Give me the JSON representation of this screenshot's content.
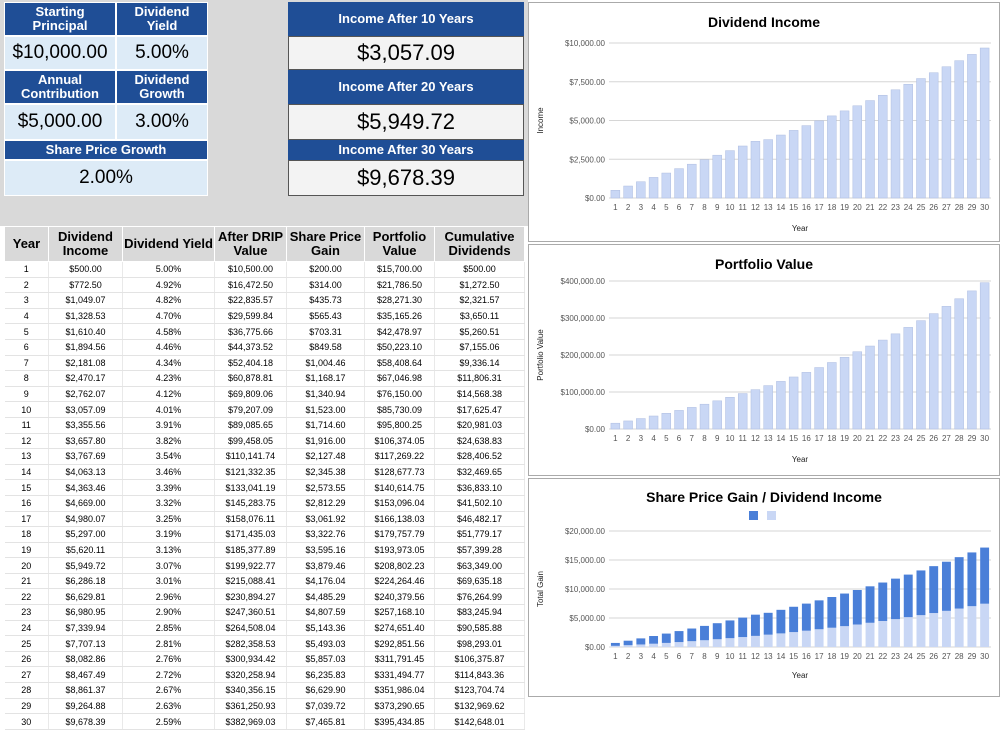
{
  "inputs": {
    "starting_principal_label": "Starting Principal",
    "starting_principal": "$10,000.00",
    "dividend_yield_label": "Dividend Yield",
    "dividend_yield": "5.00%",
    "annual_contribution_label": "Annual Contribution",
    "annual_contribution": "$5,000.00",
    "dividend_growth_label": "Dividend Growth",
    "dividend_growth": "3.00%",
    "share_price_growth_label": "Share Price Growth",
    "share_price_growth": "2.00%"
  },
  "outputs": {
    "income_10_label": "Income After 10 Years",
    "income_10": "$3,057.09",
    "income_20_label": "Income After 20 Years",
    "income_20": "$5,949.72",
    "income_30_label": "Income After 30 Years",
    "income_30": "$9,678.39"
  },
  "table": {
    "headers": [
      "Year",
      "Dividend Income",
      "Dividend Yield",
      "After DRIP Value",
      "Share Price Gain",
      "Portfolio Value",
      "Cumulative Dividends"
    ],
    "rows": [
      [
        "1",
        "$500.00",
        "5.00%",
        "$10,500.00",
        "$200.00",
        "$15,700.00",
        "$500.00"
      ],
      [
        "2",
        "$772.50",
        "4.92%",
        "$16,472.50",
        "$314.00",
        "$21,786.50",
        "$1,272.50"
      ],
      [
        "3",
        "$1,049.07",
        "4.82%",
        "$22,835.57",
        "$435.73",
        "$28,271.30",
        "$2,321.57"
      ],
      [
        "4",
        "$1,328.53",
        "4.70%",
        "$29,599.84",
        "$565.43",
        "$35,165.26",
        "$3,650.11"
      ],
      [
        "5",
        "$1,610.40",
        "4.58%",
        "$36,775.66",
        "$703.31",
        "$42,478.97",
        "$5,260.51"
      ],
      [
        "6",
        "$1,894.56",
        "4.46%",
        "$44,373.52",
        "$849.58",
        "$50,223.10",
        "$7,155.06"
      ],
      [
        "7",
        "$2,181.08",
        "4.34%",
        "$52,404.18",
        "$1,004.46",
        "$58,408.64",
        "$9,336.14"
      ],
      [
        "8",
        "$2,470.17",
        "4.23%",
        "$60,878.81",
        "$1,168.17",
        "$67,046.98",
        "$11,806.31"
      ],
      [
        "9",
        "$2,762.07",
        "4.12%",
        "$69,809.06",
        "$1,340.94",
        "$76,150.00",
        "$14,568.38"
      ],
      [
        "10",
        "$3,057.09",
        "4.01%",
        "$79,207.09",
        "$1,523.00",
        "$85,730.09",
        "$17,625.47"
      ],
      [
        "11",
        "$3,355.56",
        "3.91%",
        "$89,085.65",
        "$1,714.60",
        "$95,800.25",
        "$20,981.03"
      ],
      [
        "12",
        "$3,657.80",
        "3.82%",
        "$99,458.05",
        "$1,916.00",
        "$106,374.05",
        "$24,638.83"
      ],
      [
        "13",
        "$3,767.69",
        "3.54%",
        "$110,141.74",
        "$2,127.48",
        "$117,269.22",
        "$28,406.52"
      ],
      [
        "14",
        "$4,063.13",
        "3.46%",
        "$121,332.35",
        "$2,345.38",
        "$128,677.73",
        "$32,469.65"
      ],
      [
        "15",
        "$4,363.46",
        "3.39%",
        "$133,041.19",
        "$2,573.55",
        "$140,614.75",
        "$36,833.10"
      ],
      [
        "16",
        "$4,669.00",
        "3.32%",
        "$145,283.75",
        "$2,812.29",
        "$153,096.04",
        "$41,502.10"
      ],
      [
        "17",
        "$4,980.07",
        "3.25%",
        "$158,076.11",
        "$3,061.92",
        "$166,138.03",
        "$46,482.17"
      ],
      [
        "18",
        "$5,297.00",
        "3.19%",
        "$171,435.03",
        "$3,322.76",
        "$179,757.79",
        "$51,779.17"
      ],
      [
        "19",
        "$5,620.11",
        "3.13%",
        "$185,377.89",
        "$3,595.16",
        "$193,973.05",
        "$57,399.28"
      ],
      [
        "20",
        "$5,949.72",
        "3.07%",
        "$199,922.77",
        "$3,879.46",
        "$208,802.23",
        "$63,349.00"
      ],
      [
        "21",
        "$6,286.18",
        "3.01%",
        "$215,088.41",
        "$4,176.04",
        "$224,264.46",
        "$69,635.18"
      ],
      [
        "22",
        "$6,629.81",
        "2.96%",
        "$230,894.27",
        "$4,485.29",
        "$240,379.56",
        "$76,264.99"
      ],
      [
        "23",
        "$6,980.95",
        "2.90%",
        "$247,360.51",
        "$4,807.59",
        "$257,168.10",
        "$83,245.94"
      ],
      [
        "24",
        "$7,339.94",
        "2.85%",
        "$264,508.04",
        "$5,143.36",
        "$274,651.40",
        "$90,585.88"
      ],
      [
        "25",
        "$7,707.13",
        "2.81%",
        "$282,358.53",
        "$5,493.03",
        "$292,851.56",
        "$98,293.01"
      ],
      [
        "26",
        "$8,082.86",
        "2.76%",
        "$300,934.42",
        "$5,857.03",
        "$311,791.45",
        "$106,375.87"
      ],
      [
        "27",
        "$8,467.49",
        "2.72%",
        "$320,258.94",
        "$6,235.83",
        "$331,494.77",
        "$114,843.36"
      ],
      [
        "28",
        "$8,861.37",
        "2.67%",
        "$340,356.15",
        "$6,629.90",
        "$351,986.04",
        "$123,704.74"
      ],
      [
        "29",
        "$9,264.88",
        "2.63%",
        "$361,250.93",
        "$7,039.72",
        "$373,290.65",
        "$132,969.62"
      ],
      [
        "30",
        "$9,678.39",
        "2.59%",
        "$382,969.03",
        "$7,465.81",
        "$395,434.85",
        "$142,648.01"
      ]
    ]
  },
  "colors": {
    "header": "#1f4e96",
    "input_bg": "#ddebf7",
    "bar_light": "#c9d7f5",
    "bar_dark": "#4a7fd8"
  },
  "chart_data": [
    {
      "type": "bar",
      "title": "Dividend Income",
      "xlabel": "Year",
      "ylabel": "Income",
      "ylim": [
        0,
        10000
      ],
      "yticks": [
        "$0.00",
        "$2,500.00",
        "$5,000.00",
        "$7,500.00",
        "$10,000.00"
      ],
      "categories": [
        1,
        2,
        3,
        4,
        5,
        6,
        7,
        8,
        9,
        10,
        11,
        12,
        13,
        14,
        15,
        16,
        17,
        18,
        19,
        20,
        21,
        22,
        23,
        24,
        25,
        26,
        27,
        28,
        29,
        30
      ],
      "values": [
        500,
        772.5,
        1049.07,
        1328.53,
        1610.4,
        1894.56,
        2181.08,
        2470.17,
        2762.07,
        3057.09,
        3355.56,
        3657.8,
        3767.69,
        4063.13,
        4363.46,
        4669,
        4980.07,
        5297,
        5620.11,
        5949.72,
        6286.18,
        6629.81,
        6980.95,
        7339.94,
        7707.13,
        8082.86,
        8467.49,
        8861.37,
        9264.88,
        9678.39
      ]
    },
    {
      "type": "bar",
      "title": "Portfolio Value",
      "xlabel": "Year",
      "ylabel": "Portfolio Value",
      "ylim": [
        0,
        400000
      ],
      "yticks": [
        "$0.00",
        "$100,000.00",
        "$200,000.00",
        "$300,000.00",
        "$400,000.00"
      ],
      "categories": [
        1,
        2,
        3,
        4,
        5,
        6,
        7,
        8,
        9,
        10,
        11,
        12,
        13,
        14,
        15,
        16,
        17,
        18,
        19,
        20,
        21,
        22,
        23,
        24,
        25,
        26,
        27,
        28,
        29,
        30
      ],
      "values": [
        15700,
        21786.5,
        28271.3,
        35165.26,
        42478.97,
        50223.1,
        58408.64,
        67046.98,
        76150,
        85730.09,
        95800.25,
        106374.05,
        117269.22,
        128677.73,
        140614.75,
        153096.04,
        166138.03,
        179757.79,
        193973.05,
        208802.23,
        224264.46,
        240379.56,
        257168.1,
        274651.4,
        292851.56,
        311791.45,
        331494.77,
        351986.04,
        373290.65,
        395434.85
      ]
    },
    {
      "type": "bar",
      "stacked": true,
      "title": "Share Price Gain / Dividend Income",
      "xlabel": "Year",
      "ylabel": "Total Gain",
      "ylim": [
        0,
        20000
      ],
      "yticks": [
        "$0.00",
        "$5,000.00",
        "$10,000.00",
        "$15,000.00",
        "$20,000.00"
      ],
      "legend": "top",
      "categories": [
        1,
        2,
        3,
        4,
        5,
        6,
        7,
        8,
        9,
        10,
        11,
        12,
        13,
        14,
        15,
        16,
        17,
        18,
        19,
        20,
        21,
        22,
        23,
        24,
        25,
        26,
        27,
        28,
        29,
        30
      ],
      "series": [
        {
          "color": "#c9d7f5",
          "values": [
            200,
            314,
            435.73,
            565.43,
            703.31,
            849.58,
            1004.46,
            1168.17,
            1340.94,
            1523,
            1714.6,
            1916,
            2127.48,
            2345.38,
            2573.55,
            2812.29,
            3061.92,
            3322.76,
            3595.16,
            3879.46,
            4176.04,
            4485.29,
            4807.59,
            5143.36,
            5493.03,
            5857.03,
            6235.83,
            6629.9,
            7039.72,
            7465.81
          ]
        },
        {
          "color": "#4a7fd8",
          "values": [
            500,
            772.5,
            1049.07,
            1328.53,
            1610.4,
            1894.56,
            2181.08,
            2470.17,
            2762.07,
            3057.09,
            3355.56,
            3657.8,
            3767.69,
            4063.13,
            4363.46,
            4669,
            4980.07,
            5297,
            5620.11,
            5949.72,
            6286.18,
            6629.81,
            6980.95,
            7339.94,
            7707.13,
            8082.86,
            8467.49,
            8861.37,
            9264.88,
            9678.39
          ]
        }
      ]
    }
  ]
}
